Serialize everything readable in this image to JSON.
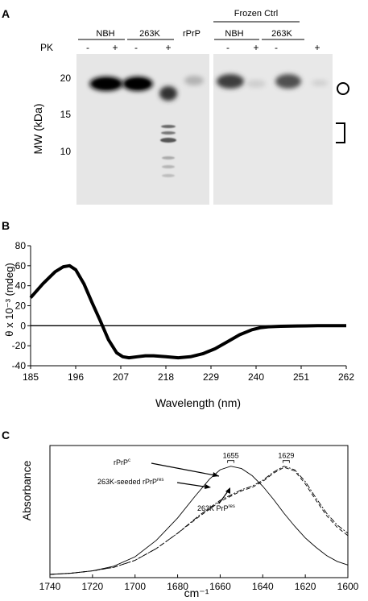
{
  "panel_a": {
    "panel_label": "A",
    "group_header": "Frozen Ctrl",
    "pk_label": "PK",
    "lanes": [
      {
        "group": "NBH",
        "pk": "-",
        "band": "strong"
      },
      {
        "group": "NBH",
        "pk": "+",
        "band": "none"
      },
      {
        "group": "263K",
        "pk": "-",
        "band": "strong"
      },
      {
        "group": "263K",
        "pk": "+",
        "band": "ladder"
      },
      {
        "group": "rPrP",
        "pk": "",
        "band": "faint"
      },
      {
        "group": "NBH",
        "pk": "-",
        "band": "medium"
      },
      {
        "group": "NBH",
        "pk": "+",
        "band": "faint"
      },
      {
        "group": "263K",
        "pk": "-",
        "band": "medium"
      },
      {
        "group": "263K",
        "pk": "+",
        "band": "faint"
      }
    ],
    "group_labels": [
      "NBH",
      "263K",
      "rPrP",
      "NBH",
      "263K"
    ],
    "pk_signs": [
      "-",
      "+",
      "-",
      "+",
      "-",
      "+",
      "-",
      "+"
    ],
    "y_axis_label": "MW (kDa)",
    "y_ticks": [
      "20",
      "15",
      "10"
    ],
    "marker_colors": {
      "gel_bg": "#e6e6e6",
      "band": "#111111"
    }
  },
  "panel_b": {
    "panel_label": "B",
    "chart_data": {
      "type": "line",
      "xlabel": "Wavelength (nm)",
      "ylabel": "θ x 10⁻³ (mdeg)",
      "x_ticks": [
        "185",
        "196",
        "207",
        "218",
        "229",
        "240",
        "251",
        "262"
      ],
      "y_ticks": [
        "80",
        "60",
        "40",
        "20",
        "0",
        "-20",
        "-40"
      ],
      "xlim": [
        185,
        262
      ],
      "ylim": [
        -40,
        80
      ],
      "series": [
        {
          "x": [
            185,
            188,
            191,
            193,
            194.5,
            196,
            198,
            200,
            202,
            204,
            206,
            207.5,
            209,
            211,
            213,
            215,
            218,
            221,
            224,
            227,
            230,
            233,
            236,
            239,
            241,
            243,
            246,
            250,
            255,
            262
          ],
          "y": [
            28,
            42,
            54,
            59,
            60,
            56,
            42,
            23,
            5,
            -14,
            -27,
            -31,
            -32,
            -31,
            -30,
            -30,
            -31,
            -32,
            -31,
            -28,
            -23,
            -16,
            -9,
            -4,
            -2,
            -1,
            -0.5,
            -0.2,
            0,
            0
          ]
        }
      ]
    }
  },
  "panel_c": {
    "panel_label": "C",
    "chart_data": {
      "type": "line",
      "xlabel": "cm⁻¹",
      "ylabel": "Absorbance",
      "x_ticks": [
        "1740",
        "1720",
        "1700",
        "1680",
        "1660",
        "1640",
        "1620",
        "1600"
      ],
      "xlim": [
        1740,
        1600
      ],
      "annotations": [
        {
          "text": "1655",
          "x": 1655
        },
        {
          "text": "1629",
          "x": 1629
        }
      ],
      "series": [
        {
          "name": "rPrP",
          "name_sup": "c",
          "style": "solid",
          "x": [
            1740,
            1730,
            1720,
            1710,
            1700,
            1690,
            1680,
            1672,
            1665,
            1660,
            1655,
            1650,
            1645,
            1640,
            1635,
            1630,
            1625,
            1620,
            1615,
            1610,
            1605,
            1600
          ],
          "y": [
            0.0,
            0.01,
            0.03,
            0.07,
            0.15,
            0.29,
            0.48,
            0.66,
            0.81,
            0.89,
            0.92,
            0.9,
            0.84,
            0.75,
            0.64,
            0.52,
            0.41,
            0.31,
            0.23,
            0.16,
            0.11,
            0.08
          ]
        },
        {
          "name": "263K-seeded rPrP",
          "name_sup": "res",
          "style": "dashed",
          "x": [
            1740,
            1730,
            1720,
            1710,
            1700,
            1690,
            1680,
            1670,
            1660,
            1650,
            1645,
            1640,
            1635,
            1630,
            1625,
            1620,
            1615,
            1610,
            1605,
            1600
          ],
          "y": [
            0.0,
            0.01,
            0.03,
            0.06,
            0.12,
            0.22,
            0.35,
            0.49,
            0.62,
            0.71,
            0.74,
            0.79,
            0.86,
            0.91,
            0.88,
            0.77,
            0.63,
            0.5,
            0.4,
            0.33
          ]
        },
        {
          "name": "263K PrP",
          "name_sup": "res",
          "style": "dashdot",
          "x": [
            1740,
            1730,
            1720,
            1710,
            1700,
            1690,
            1680,
            1670,
            1660,
            1650,
            1645,
            1640,
            1635,
            1630,
            1625,
            1620,
            1615,
            1610,
            1605,
            1600
          ],
          "y": [
            0.0,
            0.01,
            0.03,
            0.06,
            0.12,
            0.22,
            0.35,
            0.5,
            0.63,
            0.72,
            0.75,
            0.8,
            0.87,
            0.92,
            0.89,
            0.79,
            0.65,
            0.52,
            0.42,
            0.35
          ]
        }
      ]
    }
  }
}
